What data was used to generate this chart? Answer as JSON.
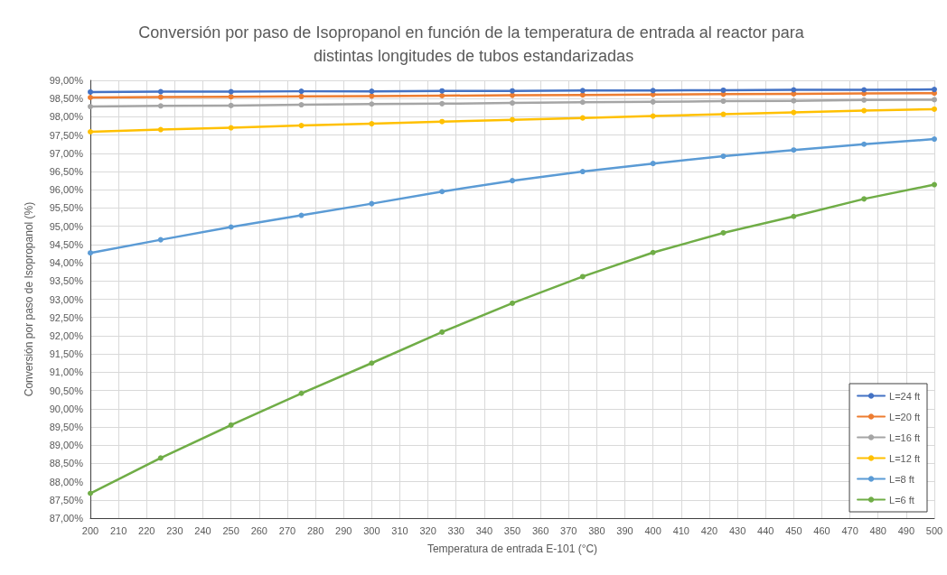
{
  "chart_data": {
    "type": "line",
    "title": "Conversión por paso de Isopropanol en función de la temperatura de entrada al reactor para distintas longitudes de tubos estandarizadas",
    "xlabel": "Temperatura de entrada E-101 (°C)",
    "ylabel": "Conversión por paso de Isopropanol (%)",
    "x": [
      200,
      225,
      250,
      275,
      300,
      325,
      350,
      375,
      400,
      425,
      450,
      475,
      500
    ],
    "series": [
      {
        "name": "L=24 ft",
        "color": "#4472c4",
        "values": [
          98.68,
          98.69,
          98.69,
          98.7,
          98.7,
          98.71,
          98.71,
          98.72,
          98.72,
          98.73,
          98.74,
          98.74,
          98.75
        ]
      },
      {
        "name": "L=20 ft",
        "color": "#ed7d31",
        "values": [
          98.53,
          98.54,
          98.55,
          98.56,
          98.57,
          98.58,
          98.59,
          98.6,
          98.61,
          98.62,
          98.63,
          98.64,
          98.65
        ]
      },
      {
        "name": "L=16 ft",
        "color": "#a5a5a5",
        "values": [
          98.28,
          98.3,
          98.31,
          98.33,
          98.35,
          98.36,
          98.38,
          98.4,
          98.41,
          98.43,
          98.44,
          98.46,
          98.47
        ]
      },
      {
        "name": "L=12 ft",
        "color": "#ffc000",
        "values": [
          97.59,
          97.65,
          97.7,
          97.76,
          97.81,
          97.87,
          97.92,
          97.97,
          98.02,
          98.07,
          98.12,
          98.17,
          98.21
        ]
      },
      {
        "name": "L=8 ft",
        "color": "#5b9bd5",
        "values": [
          94.27,
          94.63,
          94.98,
          95.3,
          95.62,
          95.95,
          96.25,
          96.5,
          96.72,
          96.92,
          97.09,
          97.25,
          97.39
        ]
      },
      {
        "name": "L=6 ft",
        "color": "#70ad47",
        "values": [
          87.68,
          88.65,
          89.55,
          90.42,
          91.25,
          92.1,
          92.89,
          93.62,
          94.28,
          94.82,
          95.27,
          95.75,
          96.14
        ]
      }
    ],
    "xlim": [
      200,
      500
    ],
    "xticks": [
      200,
      210,
      220,
      230,
      240,
      250,
      260,
      270,
      280,
      290,
      300,
      310,
      320,
      330,
      340,
      350,
      360,
      370,
      380,
      390,
      400,
      410,
      420,
      430,
      440,
      450,
      460,
      470,
      480,
      490,
      500
    ],
    "ylim": [
      87,
      99
    ],
    "yticks": [
      {
        "value": 87,
        "label": "87,00%"
      },
      {
        "value": 87.5,
        "label": "87,50%"
      },
      {
        "value": 88,
        "label": "88,00%"
      },
      {
        "value": 88.5,
        "label": "88,50%"
      },
      {
        "value": 89,
        "label": "89,00%"
      },
      {
        "value": 89.5,
        "label": "89,50%"
      },
      {
        "value": 90,
        "label": "90,00%"
      },
      {
        "value": 90.5,
        "label": "90,50%"
      },
      {
        "value": 91,
        "label": "91,00%"
      },
      {
        "value": 91.5,
        "label": "91,50%"
      },
      {
        "value": 92,
        "label": "92,00%"
      },
      {
        "value": 92.5,
        "label": "92,50%"
      },
      {
        "value": 93,
        "label": "93,00%"
      },
      {
        "value": 93.5,
        "label": "93,50%"
      },
      {
        "value": 94,
        "label": "94,00%"
      },
      {
        "value": 94.5,
        "label": "94,50%"
      },
      {
        "value": 95,
        "label": "95,00%"
      },
      {
        "value": 95.5,
        "label": "95,50%"
      },
      {
        "value": 96,
        "label": "96,00%"
      },
      {
        "value": 96.5,
        "label": "96,50%"
      },
      {
        "value": 97,
        "label": "97,00%"
      },
      {
        "value": 97.5,
        "label": "97,50%"
      },
      {
        "value": 98,
        "label": "98,00%"
      },
      {
        "value": 98.5,
        "label": "98,50%"
      },
      {
        "value": 99,
        "label": "99,00%"
      }
    ],
    "grid": true,
    "legend": "bottom right",
    "marker": "circle",
    "line_style": "solid"
  }
}
